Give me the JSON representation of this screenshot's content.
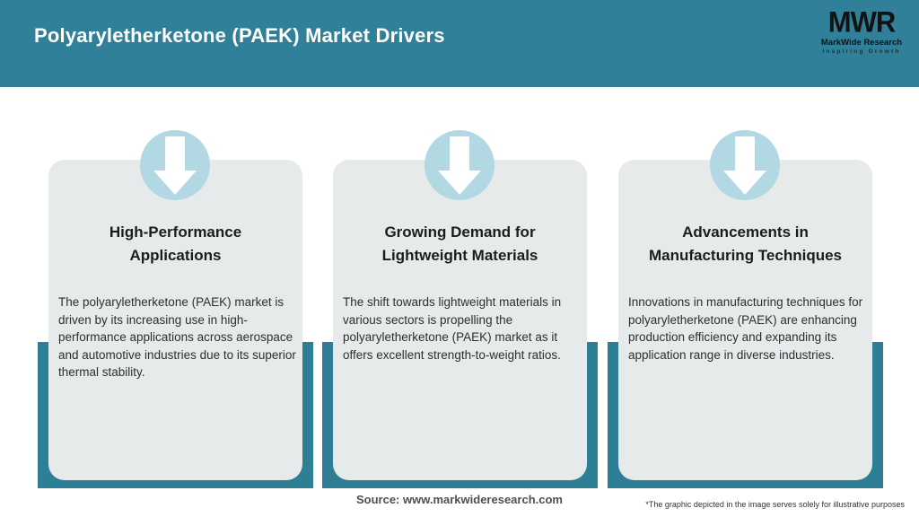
{
  "header": {
    "title": "Polyaryletherketone (PAEK) Market Drivers",
    "logo": {
      "acronym": "MWR",
      "name": "MarkWide Research",
      "tagline": "Inspiring Growth"
    }
  },
  "cards": [
    {
      "icon": "down-arrow-icon",
      "title_line1": "High-Performance",
      "title_line2": "Applications",
      "description": "The polyaryletherketone (PAEK) market is driven by its increasing use in high-performance applications across aerospace and automotive industries due to its superior thermal stability."
    },
    {
      "icon": "down-arrow-icon",
      "title_line1": "Growing Demand for",
      "title_line2": "Lightweight Materials",
      "description": "The shift towards lightweight materials in various sectors is propelling the polyaryletherketone (PAEK) market as it offers excellent strength-to-weight ratios."
    },
    {
      "icon": "down-arrow-icon",
      "title_line1": "Advancements in",
      "title_line2": "Manufacturing Techniques",
      "description": "Innovations in manufacturing techniques for polyaryletherketone (PAEK) are enhancing production efficiency and expanding its application range in diverse industries."
    }
  ],
  "footer": {
    "source": "Source: www.markwideresearch.com",
    "disclaimer": "*The graphic depicted in the image serves solely for illustrative purposes"
  },
  "colors": {
    "header_teal": "#2f8098",
    "band_teal": "#2e7e96",
    "card_bg": "#e7eaeb",
    "circle_blue": "#b2d8e3",
    "arrow_white": "#ffffff",
    "title_text": "#1c1c1c",
    "body_text": "#2e2e2e",
    "header_text": "#ffffff"
  }
}
